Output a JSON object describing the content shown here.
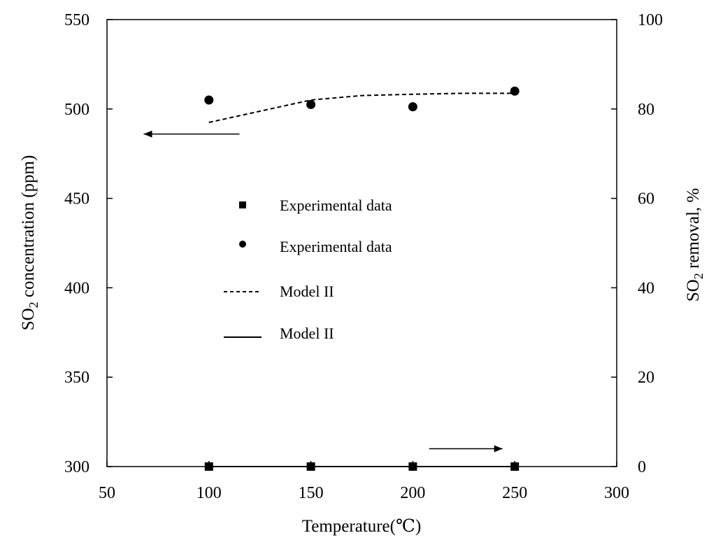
{
  "chart_data": {
    "type": "scatter",
    "x": [
      100,
      150,
      200,
      250
    ],
    "xlabel": "Temperature(℃)",
    "xlim": [
      50,
      300
    ],
    "xticks": [
      "50",
      "100",
      "150",
      "200",
      "250",
      "300"
    ],
    "y_left": {
      "label_main": "SO",
      "label_sub": "2",
      "label_rest": " concentration (ppm)",
      "lim": [
        300,
        550
      ],
      "ticks": [
        "300",
        "350",
        "400",
        "450",
        "500",
        "550"
      ]
    },
    "y_right": {
      "label_main": "SO",
      "label_sub": "2",
      "label_rest": " removal,  %",
      "lim": [
        0,
        100
      ],
      "ticks": [
        "0",
        "20",
        "40",
        "60",
        "80",
        "100"
      ]
    },
    "series": [
      {
        "name": "Experimental data",
        "marker": "square",
        "axis": "left",
        "x": [
          100,
          150,
          200,
          250
        ],
        "values": [
          300,
          300,
          300,
          300
        ]
      },
      {
        "name": "Experimental data",
        "marker": "circle",
        "axis": "right",
        "x": [
          100,
          150,
          200,
          250
        ],
        "values": [
          82,
          81,
          80.5,
          84
        ]
      },
      {
        "name": "Model II",
        "style": "dashed",
        "axis": "right",
        "x": [
          100,
          125,
          150,
          175,
          200,
          225,
          250
        ],
        "values": [
          77,
          79.5,
          82,
          83,
          83.3,
          83.5,
          83.5
        ]
      },
      {
        "name": "Model II",
        "style": "solid",
        "axis": "left",
        "x": [
          100,
          150,
          200,
          250
        ],
        "values": [
          300,
          300,
          300,
          300
        ]
      }
    ],
    "arrows": [
      {
        "direction": "left",
        "points_to": "left axis",
        "x_from": 115,
        "x_to": 68,
        "y": 486
      },
      {
        "direction": "right",
        "points_to": "right axis",
        "x_from": 208,
        "x_to": 244,
        "y": 4
      }
    ]
  }
}
